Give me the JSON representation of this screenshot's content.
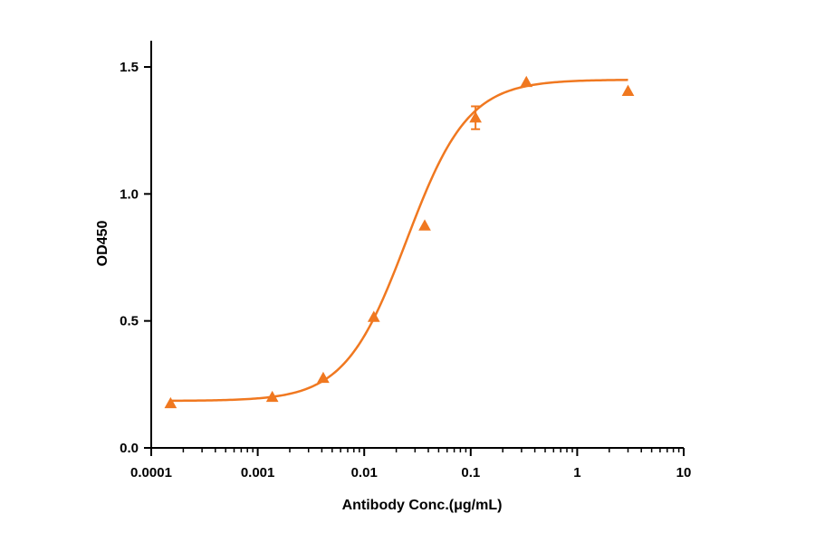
{
  "chart_data": {
    "type": "scatter",
    "title": "",
    "xlabel": "Antibody Conc.(μg/mL)",
    "ylabel": "OD450",
    "x_scale": "log",
    "xlim": [
      0.0001,
      10
    ],
    "ylim": [
      0,
      1.6
    ],
    "x_ticks": [
      0.0001,
      0.001,
      0.01,
      0.1,
      1,
      10
    ],
    "x_tick_labels": [
      "0.0001",
      "0.001",
      "0.01",
      "0.1",
      "1",
      "10"
    ],
    "y_ticks": [
      0,
      0.5,
      1.0,
      1.5
    ],
    "y_tick_labels": [
      "0.0",
      "0.5",
      "1.0",
      "1.5"
    ],
    "grid": false,
    "color": "#F07820",
    "series": [
      {
        "marker": "triangle",
        "points": [
          {
            "x": 0.000152,
            "y": 0.175
          },
          {
            "x": 0.00137,
            "y": 0.2
          },
          {
            "x": 0.00412,
            "y": 0.275
          },
          {
            "x": 0.0123,
            "y": 0.515
          },
          {
            "x": 0.037,
            "y": 0.875
          },
          {
            "x": 0.111,
            "y": 1.3,
            "err": 0.045
          },
          {
            "x": 0.333,
            "y": 1.44
          },
          {
            "x": 3.0,
            "y": 1.405
          }
        ]
      }
    ],
    "fit_curve": {
      "model": "4PL",
      "bottom": 0.185,
      "top": 1.45,
      "ec50": 0.025,
      "hill": 1.5,
      "x_range": [
        0.000152,
        3.0
      ]
    }
  }
}
